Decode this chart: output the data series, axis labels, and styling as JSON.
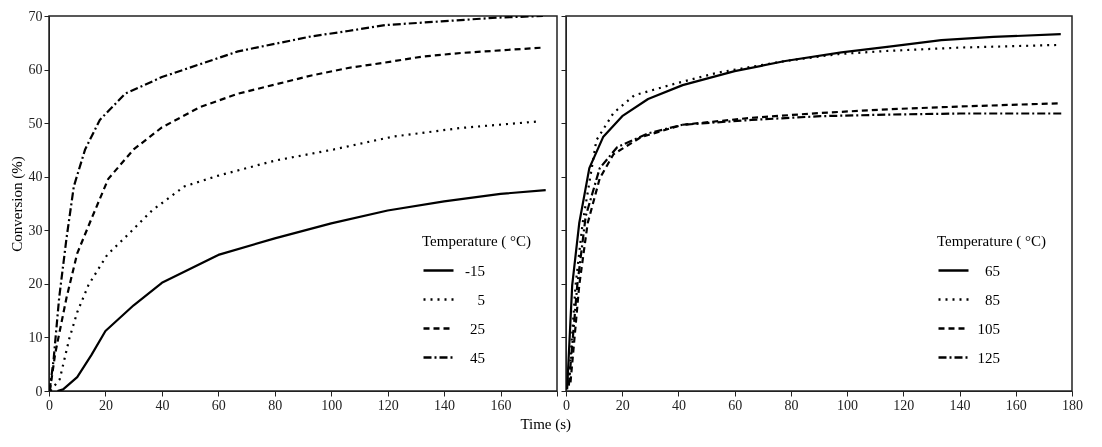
{
  "chart_data": [
    {
      "type": "line",
      "ylabel": "Conversion (%)",
      "xlabel": "Time (s)",
      "legend_title": "Temperature ( °C)",
      "legend": "bottom right",
      "grid": false,
      "xlim": [
        0,
        180
      ],
      "xticks": [
        0,
        20,
        40,
        60,
        80,
        100,
        120,
        140,
        160,
        {
          "value": 180,
          "label": null
        }
      ],
      "ylim": [
        0,
        70
      ],
      "yticks": [
        0,
        10,
        20,
        30,
        40,
        50,
        60,
        70
      ],
      "series": [
        {
          "name": "-15",
          "color": "#000000",
          "line_style": "solid",
          "x": [
            3,
            5,
            10,
            15,
            20,
            30,
            40,
            60,
            80,
            100,
            120,
            140,
            160,
            176
          ],
          "values": [
            0,
            0.3,
            2.6,
            6.7,
            11.2,
            16,
            20.2,
            25.4,
            28.5,
            31.3,
            33.7,
            35.4,
            36.8,
            37.5
          ]
        },
        {
          "name": "5",
          "color": "#000000",
          "line_style": "dotted",
          "x": [
            0.5,
            3.8,
            7.2,
            10,
            14,
            20.6,
            28,
            36.5,
            48,
            60,
            80,
            101,
            122,
            146,
            173
          ],
          "values": [
            0,
            2.2,
            9.8,
            14.7,
            19.8,
            25.4,
            29.2,
            33.7,
            38.2,
            40.2,
            43,
            45.1,
            47.5,
            49.1,
            50.3
          ]
        },
        {
          "name": "25",
          "color": "#000000",
          "line_style": "dashed",
          "x": [
            0.3,
            2.2,
            6.2,
            10,
            15.4,
            21,
            30,
            40,
            53.5,
            67,
            80,
            93,
            106,
            119,
            132,
            146,
            175
          ],
          "values": [
            0,
            7,
            17.4,
            25.7,
            32.6,
            39.6,
            45.1,
            49.2,
            53,
            55.5,
            57.2,
            58.9,
            60.3,
            61.3,
            62.4,
            63.1,
            64.1
          ]
        },
        {
          "name": "45",
          "color": "#000000",
          "line_style": "dashdot",
          "x": [
            0.2,
            1.6,
            3.6,
            6.2,
            8.8,
            12.8,
            18,
            27,
            40,
            53.5,
            67,
            80,
            93,
            106,
            119,
            139,
            159,
            175
          ],
          "values": [
            0,
            5.7,
            17.4,
            28.5,
            38.2,
            45.1,
            50.6,
            55.5,
            58.6,
            61,
            63.4,
            64.8,
            66.2,
            67.2,
            68.3,
            69,
            69.7,
            70
          ]
        }
      ]
    },
    {
      "type": "line",
      "legend_title": "Temperature ( °C)",
      "legend": "bottom right",
      "grid": false,
      "tick_labels": "x",
      "xlim": [
        0,
        180
      ],
      "xticks": [
        0,
        20,
        40,
        60,
        80,
        100,
        120,
        140,
        160,
        180
      ],
      "ylim": [
        0,
        70
      ],
      "yticks": [
        0,
        10,
        20,
        30,
        40,
        50,
        60,
        70
      ],
      "series": [
        {
          "name": "65",
          "color": "#000000",
          "line_style": "solid",
          "x": [
            0.4,
            2.2,
            4.7,
            8.3,
            13.2,
            20,
            29.2,
            41.5,
            60,
            78,
            98,
            115,
            133.5,
            152,
            176
          ],
          "values": [
            0.3,
            19.7,
            31.3,
            41.6,
            47.4,
            51.3,
            54.5,
            57.1,
            59.7,
            61.6,
            63.2,
            64.3,
            65.5,
            66.1,
            66.6
          ]
        },
        {
          "name": "85",
          "color": "#000000",
          "line_style": "dotted",
          "x": [
            1,
            3.4,
            5.9,
            10.8,
            16.9,
            24.3,
            39,
            53.7,
            78,
            97,
            115,
            140,
            175
          ],
          "values": [
            1.6,
            19.7,
            31.3,
            46.8,
            51.9,
            55.2,
            57.4,
            59.4,
            61.6,
            62.9,
            63.5,
            64.1,
            64.6
          ]
        },
        {
          "name": "105",
          "color": "#000000",
          "line_style": "dashed",
          "x": [
            1.6,
            4.7,
            7.7,
            12,
            16.9,
            26.7,
            41.5,
            66,
            90.5,
            115,
            140,
            175
          ],
          "values": [
            1.6,
            19.7,
            31.3,
            39.7,
            44.2,
            47.4,
            49.7,
            51,
            51.9,
            52.6,
            53.1,
            53.7
          ]
        },
        {
          "name": "125",
          "color": "#000000",
          "line_style": "dashdot",
          "x": [
            1,
            4,
            7,
            12,
            18.2,
            29.2,
            41.5,
            66,
            90.5,
            115,
            140,
            176.5
          ],
          "values": [
            1,
            19.7,
            32.6,
            41.6,
            45.5,
            48.1,
            49.7,
            50.6,
            51.3,
            51.6,
            51.8,
            51.8
          ]
        }
      ]
    }
  ]
}
